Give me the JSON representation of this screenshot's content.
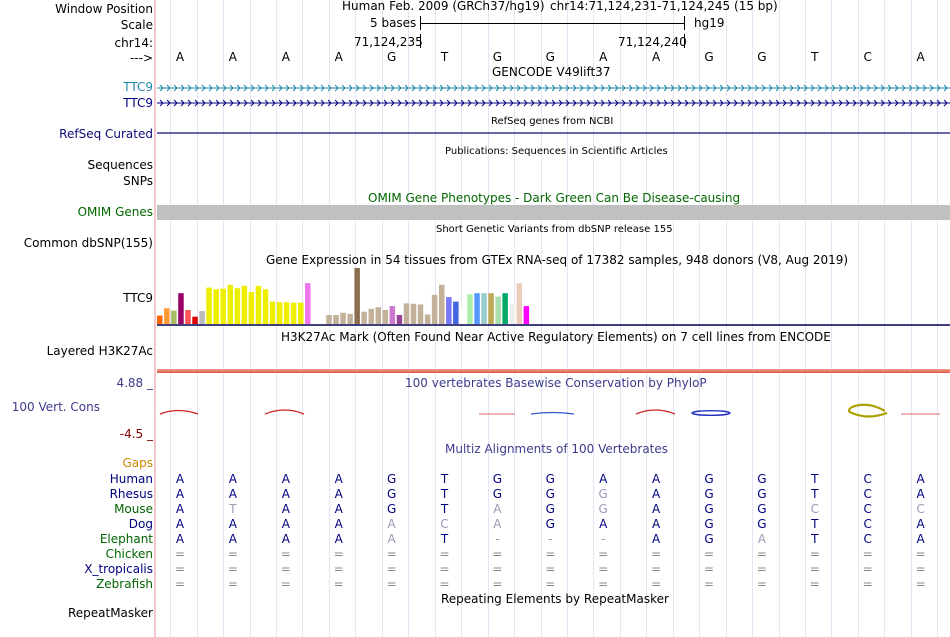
{
  "labels": {
    "window_position": "Window Position",
    "scale": "Scale",
    "chrom": "chr14:",
    "arrow": "--->",
    "ttc9_a": "TTC9",
    "ttc9_b": "TTC9",
    "refseq": "RefSeq Curated",
    "sequences": "Sequences",
    "snps": "SNPs",
    "omim": "OMIM Genes",
    "dbsnp": "Common dbSNP(155)",
    "gtex": "TTC9",
    "h3k27ac": "Layered H3K27Ac",
    "cons_max": "4.88 _",
    "cons": "100 Vert. Cons",
    "cons_min": "-4.5 _",
    "gaps": "Gaps",
    "repeatmasker": "RepeatMasker"
  },
  "header": {
    "assembly": "Human Feb. 2009 (GRCh37/hg19)",
    "position": "chr14:71,124,231-71,124,245 (15 bp)",
    "scale_text": "5 bases",
    "db": "hg19",
    "coord_left": "71,124,235",
    "coord_right": "71,124,240"
  },
  "sequence": [
    "A",
    "A",
    "A",
    "A",
    "G",
    "T",
    "G",
    "G",
    "A",
    "A",
    "G",
    "G",
    "T",
    "C",
    "A"
  ],
  "tracks": {
    "gencode": "GENCODE V49lift37",
    "refseq": "RefSeq genes from NCBI",
    "publications": "Publications: Sequences in Scientific Articles",
    "omim": "OMIM Gene Phenotypes - Dark Green Can Be Disease-causing",
    "dbsnp": "Short Genetic Variants from dbSNP release 155",
    "gtex": "Gene Expression in 54 tissues from GTEx RNA-seq of 17382 samples, 948 donors (V8, Aug 2019)",
    "h3k27ac": "H3K27Ac Mark (Often Found Near Active Regulatory Elements) on 7 cell lines from ENCODE",
    "phylop": "100 vertebrates Basewise Conservation by PhyloP",
    "multiz": "Multiz Alignments of 100 Vertebrates",
    "repeatmasker": "Repeating Elements by RepeatMasker"
  },
  "gtex_bars": [
    {
      "value": 0.15,
      "color": "#ff6600"
    },
    {
      "value": 0.28,
      "color": "#ff9933"
    },
    {
      "value": 0.24,
      "color": "#aabb66"
    },
    {
      "value": 0.55,
      "color": "#990066"
    },
    {
      "value": 0.25,
      "color": "#ff5555"
    },
    {
      "value": 0.13,
      "color": "#dd0000"
    },
    {
      "value": 0.23,
      "color": "#bbbbbb"
    },
    {
      "value": 0.65,
      "color": "#eeee00"
    },
    {
      "value": 0.62,
      "color": "#eeee00"
    },
    {
      "value": 0.63,
      "color": "#eeee00"
    },
    {
      "value": 0.7,
      "color": "#eeee00"
    },
    {
      "value": 0.64,
      "color": "#eeee00"
    },
    {
      "value": 0.68,
      "color": "#eeee00"
    },
    {
      "value": 0.57,
      "color": "#eeee00"
    },
    {
      "value": 0.68,
      "color": "#eeee00"
    },
    {
      "value": 0.62,
      "color": "#eeee00"
    },
    {
      "value": 0.4,
      "color": "#eeee00"
    },
    {
      "value": 0.39,
      "color": "#eeee00"
    },
    {
      "value": 0.39,
      "color": "#eeee00"
    },
    {
      "value": 0.38,
      "color": "#eeee00"
    },
    {
      "value": 0.38,
      "color": "#eeee00"
    },
    {
      "value": 0.73,
      "color": "#ee77ee"
    },
    {
      "value": 0.0,
      "color": "#ffffff"
    },
    {
      "value": 0.0,
      "color": "#ffffff"
    },
    {
      "value": 0.16,
      "color": "#c4b19a"
    },
    {
      "value": 0.16,
      "color": "#c4b19a"
    },
    {
      "value": 0.2,
      "color": "#c4b19a"
    },
    {
      "value": 0.18,
      "color": "#c4b19a"
    },
    {
      "value": 1.0,
      "color": "#8b6e50"
    },
    {
      "value": 0.22,
      "color": "#c4b19a"
    },
    {
      "value": 0.27,
      "color": "#c4b19a"
    },
    {
      "value": 0.3,
      "color": "#c4b19a"
    },
    {
      "value": 0.25,
      "color": "#c4b19a"
    },
    {
      "value": 0.32,
      "color": "#cc77cc"
    },
    {
      "value": 0.16,
      "color": "#994499"
    },
    {
      "value": 0.37,
      "color": "#c4b19a"
    },
    {
      "value": 0.36,
      "color": "#c4b19a"
    },
    {
      "value": 0.35,
      "color": "#c4b19a"
    },
    {
      "value": 0.17,
      "color": "#c4b19a"
    },
    {
      "value": 0.52,
      "color": "#c4b19a"
    },
    {
      "value": 0.7,
      "color": "#c4b19a"
    },
    {
      "value": 0.48,
      "color": "#7777ff"
    },
    {
      "value": 0.4,
      "color": "#4466dd"
    },
    {
      "value": 0.32,
      "color": "#ffffff"
    },
    {
      "value": 0.53,
      "color": "#aaeeaa"
    },
    {
      "value": 0.55,
      "color": "#5599ff"
    },
    {
      "value": 0.55,
      "color": "#99cccc"
    },
    {
      "value": 0.55,
      "color": "#bbaa55"
    },
    {
      "value": 0.49,
      "color": "#aaddaa"
    },
    {
      "value": 0.55,
      "color": "#00aa66"
    },
    {
      "value": 0.35,
      "color": "#eeeeee"
    },
    {
      "value": 0.73,
      "color": "#eeccbb"
    },
    {
      "value": 0.32,
      "color": "#ff00ff"
    }
  ],
  "species": [
    {
      "name": "Human",
      "color": "#000080",
      "bases": [
        "A",
        "A",
        "A",
        "A",
        "G",
        "T",
        "G",
        "G",
        "A",
        "A",
        "G",
        "G",
        "T",
        "C",
        "A"
      ],
      "dim": []
    },
    {
      "name": "Rhesus",
      "color": "#000080",
      "bases": [
        "A",
        "A",
        "A",
        "A",
        "G",
        "T",
        "G",
        "G",
        "G",
        "A",
        "G",
        "G",
        "T",
        "C",
        "A"
      ],
      "dim": [
        8
      ]
    },
    {
      "name": "Mouse",
      "color": "#006400",
      "bases": [
        "A",
        "T",
        "A",
        "A",
        "G",
        "T",
        "A",
        "G",
        "G",
        "A",
        "G",
        "G",
        "C",
        "C",
        "C"
      ],
      "dim": [
        1,
        6,
        8,
        12,
        14
      ]
    },
    {
      "name": "Dog",
      "color": "#000080",
      "bases": [
        "A",
        "A",
        "A",
        "A",
        "A",
        "C",
        "A",
        "G",
        "A",
        "A",
        "G",
        "G",
        "T",
        "C",
        "A"
      ],
      "dim": [
        4,
        5,
        6
      ]
    },
    {
      "name": "Elephant",
      "color": "#006400",
      "bases": [
        "A",
        "A",
        "A",
        "A",
        "A",
        "T",
        "-",
        "-",
        "-",
        "A",
        "G",
        "A",
        "T",
        "C",
        "A"
      ],
      "dim": [
        4,
        6,
        7,
        8,
        11
      ]
    },
    {
      "name": "Chicken",
      "color": "#006400",
      "bases": [
        "=",
        "=",
        "=",
        "=",
        "=",
        "=",
        "=",
        "=",
        "=",
        "=",
        "=",
        "=",
        "=",
        "=",
        "="
      ],
      "dim": []
    },
    {
      "name": "X_tropicalis",
      "color": "#000080",
      "bases": [
        "=",
        "=",
        "=",
        "=",
        "=",
        "=",
        "=",
        "=",
        "=",
        "=",
        "=",
        "=",
        "=",
        "=",
        "="
      ],
      "dim": []
    },
    {
      "name": "Zebrafish",
      "color": "#006400",
      "bases": [
        "=",
        "=",
        "=",
        "=",
        "=",
        "=",
        "=",
        "=",
        "=",
        "=",
        "=",
        "=",
        "=",
        "=",
        "="
      ],
      "dim": []
    }
  ],
  "colors": {
    "ttc9_a": "#2288aa",
    "ttc9_b": "#000080",
    "refseq": "#0c0c78",
    "omim_text": "#006600",
    "omim_bar": "#c0c0c0",
    "cons_scale": "#3c3c8c",
    "gaps": "#cc8800",
    "h3k27ac": "#e07060",
    "phylop_pos": "#cc2222",
    "phylop_neg": "#2222cc"
  }
}
